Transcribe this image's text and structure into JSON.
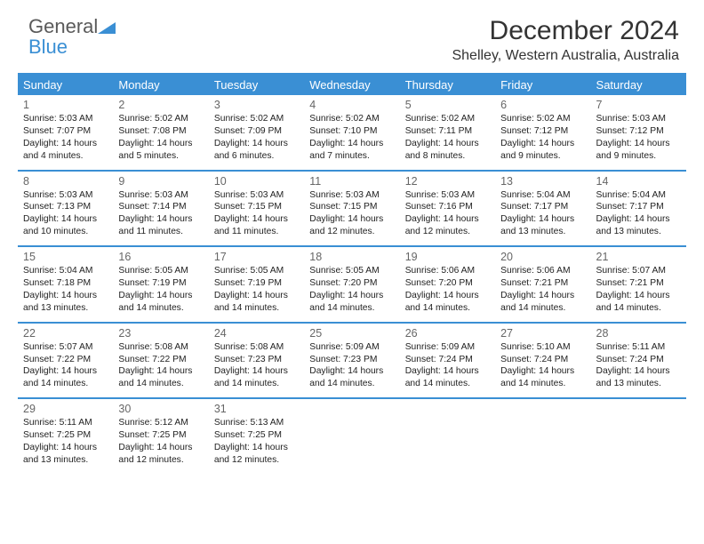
{
  "logo": {
    "text1": "General",
    "text2": "Blue"
  },
  "title": "December 2024",
  "subtitle": "Shelley, Western Australia, Australia",
  "colors": {
    "accent": "#3a8fd4",
    "header_bg": "#3a8fd4",
    "header_text": "#ffffff",
    "text": "#333333",
    "daynum": "#666666",
    "background": "#ffffff"
  },
  "calendar": {
    "type": "table",
    "columns": [
      "Sunday",
      "Monday",
      "Tuesday",
      "Wednesday",
      "Thursday",
      "Friday",
      "Saturday"
    ],
    "fontsize": {
      "header": 13,
      "daynum": 12.5,
      "body": 10.3
    },
    "weeks": [
      [
        {
          "n": "1",
          "sr": "Sunrise: 5:03 AM",
          "ss": "Sunset: 7:07 PM",
          "dl": "Daylight: 14 hours and 4 minutes."
        },
        {
          "n": "2",
          "sr": "Sunrise: 5:02 AM",
          "ss": "Sunset: 7:08 PM",
          "dl": "Daylight: 14 hours and 5 minutes."
        },
        {
          "n": "3",
          "sr": "Sunrise: 5:02 AM",
          "ss": "Sunset: 7:09 PM",
          "dl": "Daylight: 14 hours and 6 minutes."
        },
        {
          "n": "4",
          "sr": "Sunrise: 5:02 AM",
          "ss": "Sunset: 7:10 PM",
          "dl": "Daylight: 14 hours and 7 minutes."
        },
        {
          "n": "5",
          "sr": "Sunrise: 5:02 AM",
          "ss": "Sunset: 7:11 PM",
          "dl": "Daylight: 14 hours and 8 minutes."
        },
        {
          "n": "6",
          "sr": "Sunrise: 5:02 AM",
          "ss": "Sunset: 7:12 PM",
          "dl": "Daylight: 14 hours and 9 minutes."
        },
        {
          "n": "7",
          "sr": "Sunrise: 5:03 AM",
          "ss": "Sunset: 7:12 PM",
          "dl": "Daylight: 14 hours and 9 minutes."
        }
      ],
      [
        {
          "n": "8",
          "sr": "Sunrise: 5:03 AM",
          "ss": "Sunset: 7:13 PM",
          "dl": "Daylight: 14 hours and 10 minutes."
        },
        {
          "n": "9",
          "sr": "Sunrise: 5:03 AM",
          "ss": "Sunset: 7:14 PM",
          "dl": "Daylight: 14 hours and 11 minutes."
        },
        {
          "n": "10",
          "sr": "Sunrise: 5:03 AM",
          "ss": "Sunset: 7:15 PM",
          "dl": "Daylight: 14 hours and 11 minutes."
        },
        {
          "n": "11",
          "sr": "Sunrise: 5:03 AM",
          "ss": "Sunset: 7:15 PM",
          "dl": "Daylight: 14 hours and 12 minutes."
        },
        {
          "n": "12",
          "sr": "Sunrise: 5:03 AM",
          "ss": "Sunset: 7:16 PM",
          "dl": "Daylight: 14 hours and 12 minutes."
        },
        {
          "n": "13",
          "sr": "Sunrise: 5:04 AM",
          "ss": "Sunset: 7:17 PM",
          "dl": "Daylight: 14 hours and 13 minutes."
        },
        {
          "n": "14",
          "sr": "Sunrise: 5:04 AM",
          "ss": "Sunset: 7:17 PM",
          "dl": "Daylight: 14 hours and 13 minutes."
        }
      ],
      [
        {
          "n": "15",
          "sr": "Sunrise: 5:04 AM",
          "ss": "Sunset: 7:18 PM",
          "dl": "Daylight: 14 hours and 13 minutes."
        },
        {
          "n": "16",
          "sr": "Sunrise: 5:05 AM",
          "ss": "Sunset: 7:19 PM",
          "dl": "Daylight: 14 hours and 14 minutes."
        },
        {
          "n": "17",
          "sr": "Sunrise: 5:05 AM",
          "ss": "Sunset: 7:19 PM",
          "dl": "Daylight: 14 hours and 14 minutes."
        },
        {
          "n": "18",
          "sr": "Sunrise: 5:05 AM",
          "ss": "Sunset: 7:20 PM",
          "dl": "Daylight: 14 hours and 14 minutes."
        },
        {
          "n": "19",
          "sr": "Sunrise: 5:06 AM",
          "ss": "Sunset: 7:20 PM",
          "dl": "Daylight: 14 hours and 14 minutes."
        },
        {
          "n": "20",
          "sr": "Sunrise: 5:06 AM",
          "ss": "Sunset: 7:21 PM",
          "dl": "Daylight: 14 hours and 14 minutes."
        },
        {
          "n": "21",
          "sr": "Sunrise: 5:07 AM",
          "ss": "Sunset: 7:21 PM",
          "dl": "Daylight: 14 hours and 14 minutes."
        }
      ],
      [
        {
          "n": "22",
          "sr": "Sunrise: 5:07 AM",
          "ss": "Sunset: 7:22 PM",
          "dl": "Daylight: 14 hours and 14 minutes."
        },
        {
          "n": "23",
          "sr": "Sunrise: 5:08 AM",
          "ss": "Sunset: 7:22 PM",
          "dl": "Daylight: 14 hours and 14 minutes."
        },
        {
          "n": "24",
          "sr": "Sunrise: 5:08 AM",
          "ss": "Sunset: 7:23 PM",
          "dl": "Daylight: 14 hours and 14 minutes."
        },
        {
          "n": "25",
          "sr": "Sunrise: 5:09 AM",
          "ss": "Sunset: 7:23 PM",
          "dl": "Daylight: 14 hours and 14 minutes."
        },
        {
          "n": "26",
          "sr": "Sunrise: 5:09 AM",
          "ss": "Sunset: 7:24 PM",
          "dl": "Daylight: 14 hours and 14 minutes."
        },
        {
          "n": "27",
          "sr": "Sunrise: 5:10 AM",
          "ss": "Sunset: 7:24 PM",
          "dl": "Daylight: 14 hours and 14 minutes."
        },
        {
          "n": "28",
          "sr": "Sunrise: 5:11 AM",
          "ss": "Sunset: 7:24 PM",
          "dl": "Daylight: 14 hours and 13 minutes."
        }
      ],
      [
        {
          "n": "29",
          "sr": "Sunrise: 5:11 AM",
          "ss": "Sunset: 7:25 PM",
          "dl": "Daylight: 14 hours and 13 minutes."
        },
        {
          "n": "30",
          "sr": "Sunrise: 5:12 AM",
          "ss": "Sunset: 7:25 PM",
          "dl": "Daylight: 14 hours and 12 minutes."
        },
        {
          "n": "31",
          "sr": "Sunrise: 5:13 AM",
          "ss": "Sunset: 7:25 PM",
          "dl": "Daylight: 14 hours and 12 minutes."
        },
        null,
        null,
        null,
        null
      ]
    ]
  }
}
